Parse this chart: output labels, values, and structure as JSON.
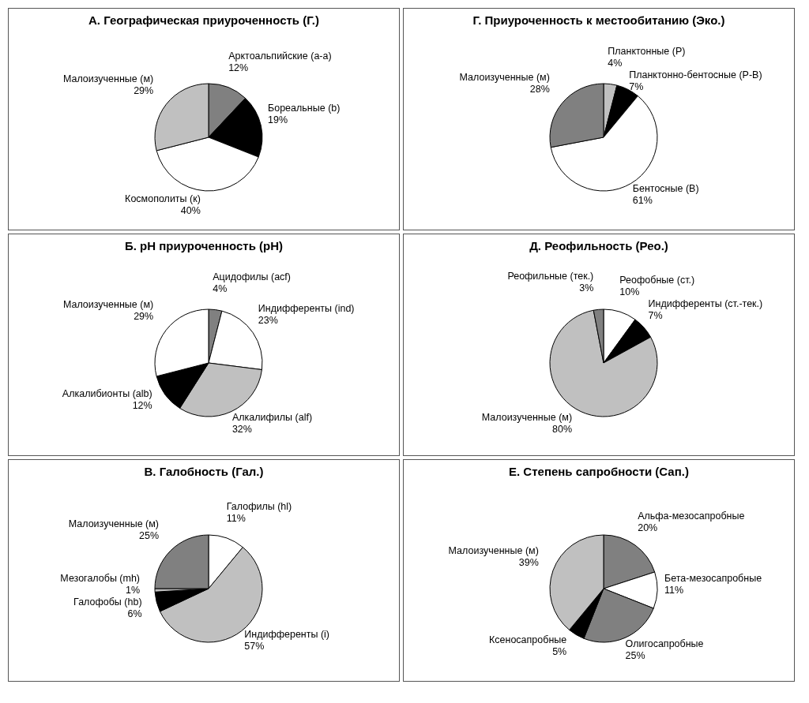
{
  "chart_data": [
    {
      "type": "pie",
      "title": "А. Географическая приуроченность (Г.)",
      "categories": [
        "Арктоальпийские (a-a)",
        "Бореальные (b)",
        "Космополиты (к)",
        "Малоизученные (м)"
      ],
      "values": [
        12,
        19,
        40,
        29
      ],
      "value_labels": [
        "12%",
        "19%",
        "40%",
        "29%"
      ],
      "colors": [
        "#808080",
        "#000000",
        "#ffffff",
        "#c0c0c0"
      ],
      "legend": false
    },
    {
      "type": "pie",
      "title": "Г. Приуроченность к местообитанию (Эко.)",
      "categories": [
        "Планктонные (P)",
        "Планктонно-бентосные (P-B)",
        "Бентосные (B)",
        "Малоизученные (м)"
      ],
      "values": [
        4,
        7,
        61,
        28
      ],
      "value_labels": [
        "4%",
        "7%",
        "61%",
        "28%"
      ],
      "colors": [
        "#c0c0c0",
        "#000000",
        "#ffffff",
        "#808080"
      ],
      "legend": false
    },
    {
      "type": "pie",
      "title": "Б. pH приуроченность (pH)",
      "categories": [
        "Ацидофилы (acf)",
        "Индифференты (ind)",
        "Алкалифилы (alf)",
        "Алкалибионты (alb)",
        "Малоизученные (м)"
      ],
      "values": [
        4,
        23,
        32,
        12,
        29
      ],
      "value_labels": [
        "4%",
        "23%",
        "32%",
        "12%",
        "29%"
      ],
      "colors": [
        "#808080",
        "#ffffff",
        "#c0c0c0",
        "#000000",
        "#ffffff"
      ],
      "legend": false
    },
    {
      "type": "pie",
      "title": "Д. Реофильность (Рео.)",
      "categories": [
        "Реофобные (ст.)",
        "Индифференты (ст.-тек.)",
        "Малоизученные (м)",
        "Реофильные (тек.)"
      ],
      "values": [
        10,
        7,
        80,
        3
      ],
      "value_labels": [
        "10%",
        "7%",
        "80%",
        "3%"
      ],
      "colors": [
        "#ffffff",
        "#000000",
        "#c0c0c0",
        "#808080"
      ],
      "legend": false
    },
    {
      "type": "pie",
      "title": "В. Галобность (Гал.)",
      "categories": [
        "Галофилы (hl)",
        "Индифференты (i)",
        "Галофобы (hb)",
        "Мезогалобы (mh)",
        "Малоизученные (м)"
      ],
      "values": [
        11,
        57,
        6,
        1,
        25
      ],
      "value_labels": [
        "11%",
        "57%",
        "6%",
        "1%",
        "25%"
      ],
      "colors": [
        "#ffffff",
        "#c0c0c0",
        "#000000",
        "#c0c0c0",
        "#808080"
      ],
      "legend": false
    },
    {
      "type": "pie",
      "title": "Е. Степень сапробности (Сап.)",
      "categories": [
        "Альфа-мезосапробные",
        "Бета-мезосапробные",
        "Олигосапробные",
        "Ксеносапробные",
        "Малоизученные (м)"
      ],
      "values": [
        20,
        11,
        25,
        5,
        39
      ],
      "value_labels": [
        "20%",
        "11%",
        "25%",
        "5%",
        "39%"
      ],
      "colors": [
        "#808080",
        "#ffffff",
        "#808080",
        "#000000",
        "#c0c0c0"
      ],
      "legend": false
    }
  ]
}
